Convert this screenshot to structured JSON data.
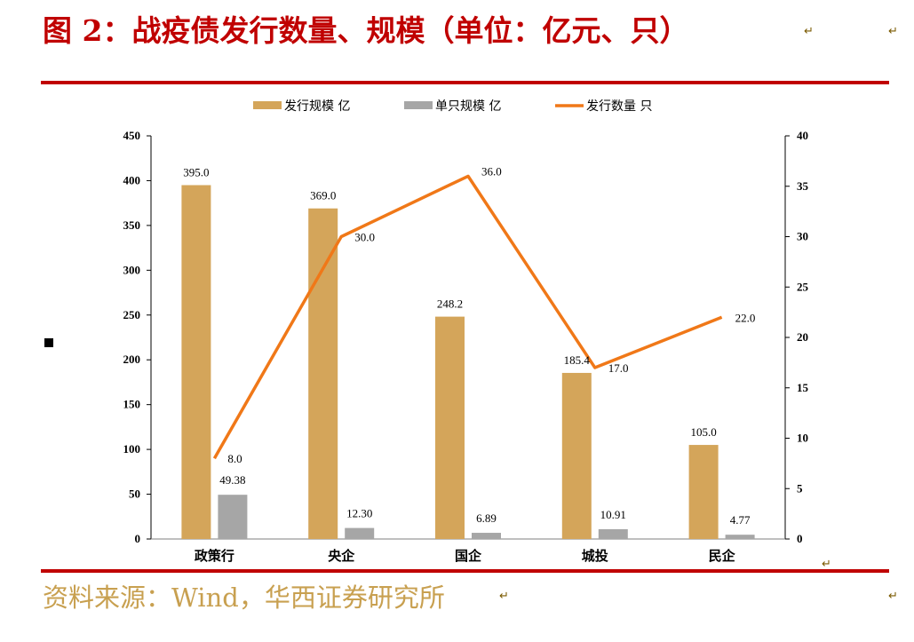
{
  "title": "图 2：战疫债发行数量、规模（单位：亿元、只）",
  "source": "资料来源：Wind，华西证券研究所",
  "return_mark": "↵",
  "colors": {
    "title": "#c00000",
    "rule": "#c00000",
    "source": "#c8a050",
    "bar_scale": "#d4a55a",
    "bar_single": "#a6a6a6",
    "line_count": "#f07818"
  },
  "chart_data": {
    "type": "bar",
    "categories": [
      "政策行",
      "央企",
      "国企",
      "城投",
      "民企"
    ],
    "series": [
      {
        "name": "发行规模  亿",
        "type": "bar",
        "axis": "left",
        "values": [
          395.0,
          369.0,
          248.2,
          185.4,
          105.0
        ],
        "labels": [
          "395.0",
          "369.0",
          "248.2",
          "185.4",
          "105.0"
        ]
      },
      {
        "name": "单只规模  亿",
        "type": "bar",
        "axis": "left",
        "values": [
          49.38,
          12.3,
          6.89,
          10.91,
          4.77
        ],
        "labels": [
          "49.38",
          "12.30",
          "6.89",
          "10.91",
          "4.77"
        ]
      },
      {
        "name": "发行数量  只",
        "type": "line",
        "axis": "right",
        "values": [
          8.0,
          30.0,
          36.0,
          17.0,
          22.0
        ],
        "labels": [
          "8.0",
          "30.0",
          "36.0",
          "17.0",
          "22.0"
        ]
      }
    ],
    "y_left": {
      "ylim": [
        0,
        450
      ],
      "ticks": [
        0,
        50,
        100,
        150,
        200,
        250,
        300,
        350,
        400,
        450
      ]
    },
    "y_right": {
      "ylim": [
        0,
        40
      ],
      "ticks": [
        0,
        5,
        10,
        15,
        20,
        25,
        30,
        35,
        40
      ]
    },
    "legend_position": "top",
    "grid": false
  }
}
